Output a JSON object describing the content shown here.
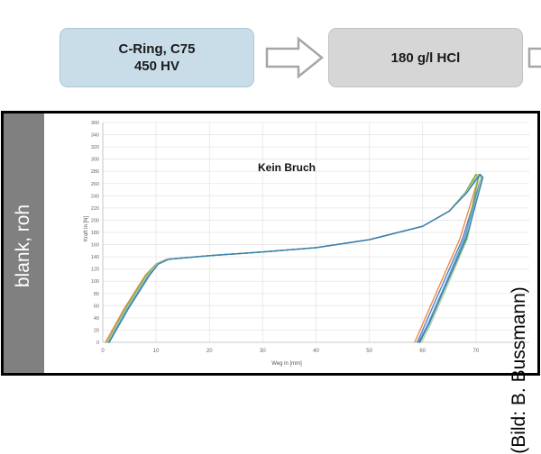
{
  "flow": {
    "step1_line1": "C-Ring, C75",
    "step1_line2": "450 HV",
    "step2_label": "180 g/l HCl"
  },
  "row_label": "blank, roh",
  "credit": "(Bild: B. Bussmann)",
  "colors": {
    "step1_fill": "#c9dde9",
    "step2_fill": "#d6d6d6",
    "row_label_fill": "#808080",
    "grid": "#e6e6e6"
  },
  "chart_data": {
    "type": "line",
    "annotation": "Kein Bruch",
    "xlabel": "Weg in [mm]",
    "ylabel": "Kraft in [N]",
    "xlim": [
      0,
      80
    ],
    "ylim": [
      0,
      360
    ],
    "xticks": [
      0,
      10,
      20,
      30,
      40,
      50,
      60,
      70
    ],
    "yticks": [
      0,
      20,
      40,
      60,
      80,
      100,
      120,
      140,
      160,
      180,
      200,
      220,
      240,
      260,
      280,
      300,
      320,
      340,
      360
    ],
    "grid": true,
    "legend": "none",
    "series": [
      {
        "color": "#ed7d31",
        "x": [
          0.5,
          4,
          8,
          10,
          12,
          20,
          30,
          40,
          50,
          60,
          65,
          68,
          70,
          70.5,
          67,
          63,
          60,
          58.5
        ],
        "y": [
          0,
          55,
          110,
          128,
          136,
          142,
          148,
          155,
          168,
          190,
          215,
          245,
          275,
          270,
          170,
          90,
          30,
          0
        ]
      },
      {
        "color": "#4472c4",
        "x": [
          1,
          4.5,
          8.5,
          10,
          12,
          20,
          30,
          40,
          50,
          60,
          65,
          68,
          70.5,
          71,
          67.5,
          63.5,
          60.5,
          59
        ]
      },
      {
        "color": "#70ad47",
        "x": [
          0.8,
          4.2,
          8.2,
          10,
          12,
          20,
          30,
          40,
          50,
          60,
          65,
          68,
          70,
          70.5,
          68,
          64,
          61,
          59.5
        ]
      },
      {
        "color": "#5b9bd5",
        "x": [
          1.1,
          4.6,
          8.6,
          10.2,
          12.2,
          20,
          30,
          40,
          50,
          60,
          65,
          68.2,
          70.6,
          71.2,
          67.8,
          64,
          61,
          59.2
        ]
      },
      {
        "color": "#a9d18e",
        "x": [
          0.9,
          4.4,
          8.4,
          10.1,
          12.1,
          20,
          30,
          40,
          50,
          60,
          65,
          68.1,
          70.4,
          71,
          68.4,
          64.5,
          61.5,
          59.8
        ]
      },
      {
        "color": "#2e75b6",
        "x": [
          1.2,
          4.8,
          8.8,
          10.4,
          12.4,
          20,
          30,
          40,
          50,
          60,
          65,
          68.3,
          70.8,
          71.3,
          68.2,
          64.2,
          61.2,
          59.4
        ]
      }
    ]
  }
}
